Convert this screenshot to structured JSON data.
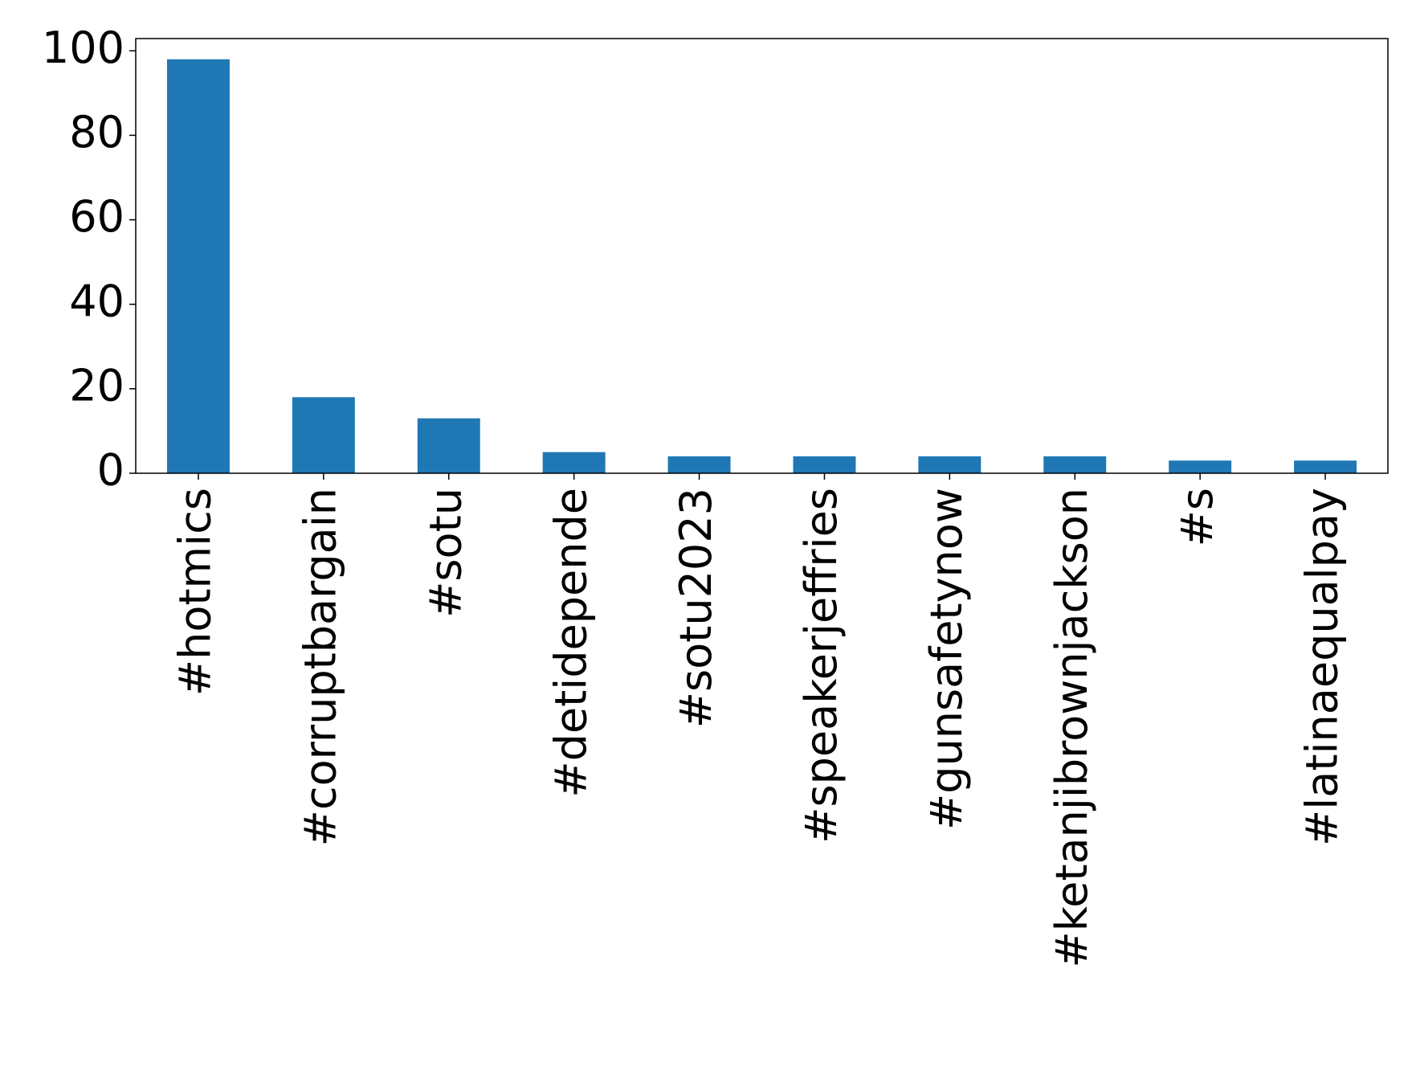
{
  "chart_data": {
    "type": "bar",
    "categories": [
      "#hotmics",
      "#corruptbargain",
      "#sotu",
      "#detidepende",
      "#sotu2023",
      "#speakerjeffries",
      "#gunsafetynow",
      "#ketanjibrownjackson",
      "#s",
      "#latinaequalpay"
    ],
    "values": [
      98,
      18,
      13,
      5,
      4,
      4,
      4,
      4,
      3,
      3
    ],
    "color": "#1f77b4",
    "ylim": [
      0,
      102.9
    ],
    "yticks": [
      0,
      20,
      40,
      60,
      80,
      100
    ],
    "grid": false
  }
}
